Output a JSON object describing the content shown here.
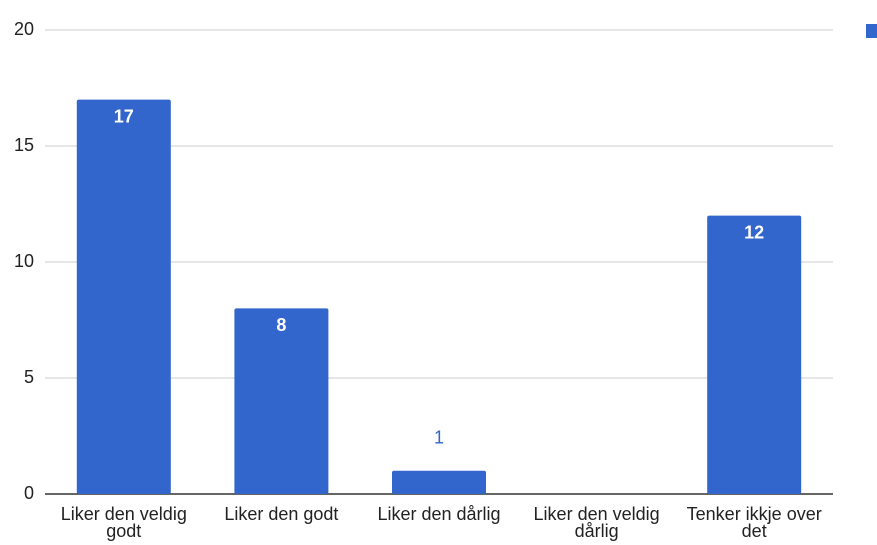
{
  "chart_data": {
    "type": "bar",
    "categories": [
      "Liker den veldig godt",
      "Liker den godt",
      "Liker den dårlig",
      "Liker den veldig dårlig",
      "Tenker ikkje over det"
    ],
    "values": [
      17,
      8,
      1,
      0,
      12
    ],
    "color": "#3366cc",
    "ylim": [
      0,
      20
    ],
    "yticks": [
      0,
      5,
      10,
      15,
      20
    ],
    "grid": true
  }
}
